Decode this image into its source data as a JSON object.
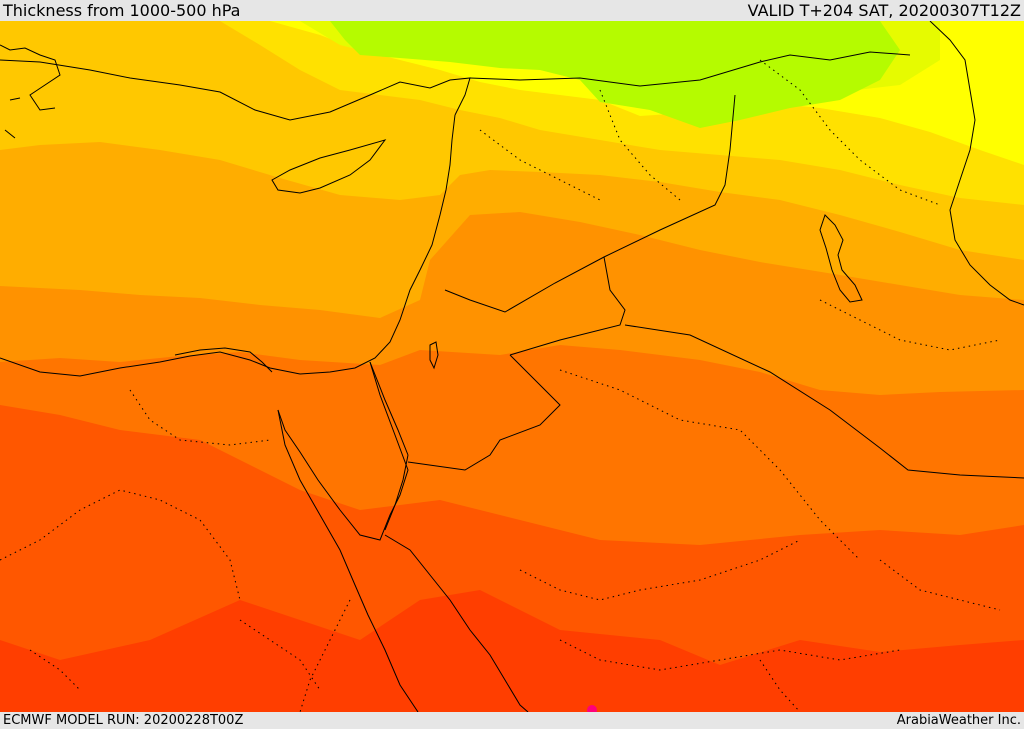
{
  "header": {
    "title": "Thickness from 1000-500 hPa",
    "valid": "VALID T+204 SAT, 20200307T12Z"
  },
  "footer": {
    "model_run": "ECMWF MODEL RUN: 20200228T00Z",
    "credit": "ArabiaWeather Inc."
  },
  "map": {
    "field": "1000-500 hPa thickness",
    "colors": {
      "light-green": "#b5fb00",
      "yellow-green": "#e6fb00",
      "yellow": "#ffff00",
      "gold": "#ffe100",
      "light-orange": "#ffc800",
      "orange": "#ffad00",
      "dark-orange": "#ff9200",
      "red-orange": "#ff7500",
      "deep-orange": "#ff5700",
      "red": "#ff3e00",
      "magenta-spot": "#ff007a"
    },
    "region": "Eastern Mediterranean, Egypt, Levant, Arabia"
  }
}
